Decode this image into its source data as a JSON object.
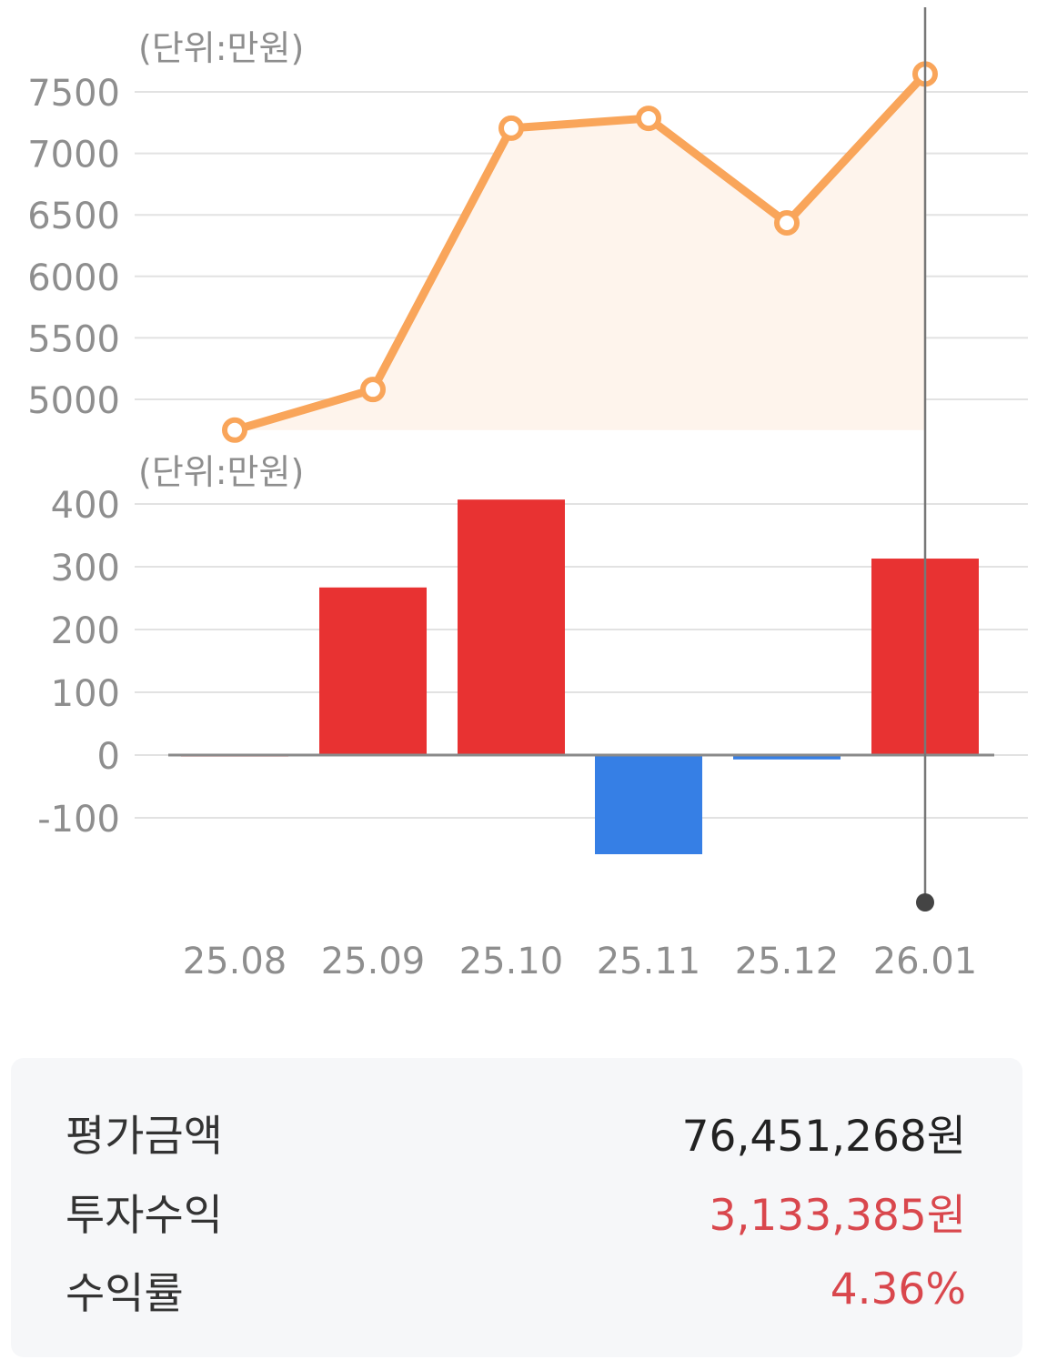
{
  "chart_data": [
    {
      "type": "area",
      "unit_label": "(단위:만원)",
      "categories": [
        "25.08",
        "25.09",
        "25.10",
        "25.11",
        "25.12",
        "26.01"
      ],
      "values": [
        4750,
        5080,
        7205,
        7285,
        6435,
        7645
      ],
      "yticks": [
        5000,
        5500,
        6000,
        6500,
        7000,
        7500
      ],
      "ylim": [
        4600,
        7800
      ],
      "grid": true,
      "color": "#f9a55a",
      "fill_color": "#fef4ec"
    },
    {
      "type": "bar",
      "unit_label": "(단위:만원)",
      "categories": [
        "25.08",
        "25.09",
        "25.10",
        "25.11",
        "25.12",
        "26.01"
      ],
      "values": [
        2,
        267,
        407,
        -158,
        -7,
        313
      ],
      "yticks": [
        -100,
        0,
        100,
        200,
        300,
        400
      ],
      "ylim": [
        -160,
        410
      ],
      "grid": true,
      "positive_color": "#e83232",
      "negative_color": "#367fe5"
    }
  ],
  "selected_category": "26.01",
  "summary": {
    "rows": [
      {
        "label": "평가금액",
        "value": "76,451,268원",
        "color": "#222222"
      },
      {
        "label": "투자수익",
        "value": "3,133,385원",
        "color": "#d9474d"
      },
      {
        "label": "수익률",
        "value": "4.36%",
        "color": "#d9474d"
      }
    ]
  }
}
